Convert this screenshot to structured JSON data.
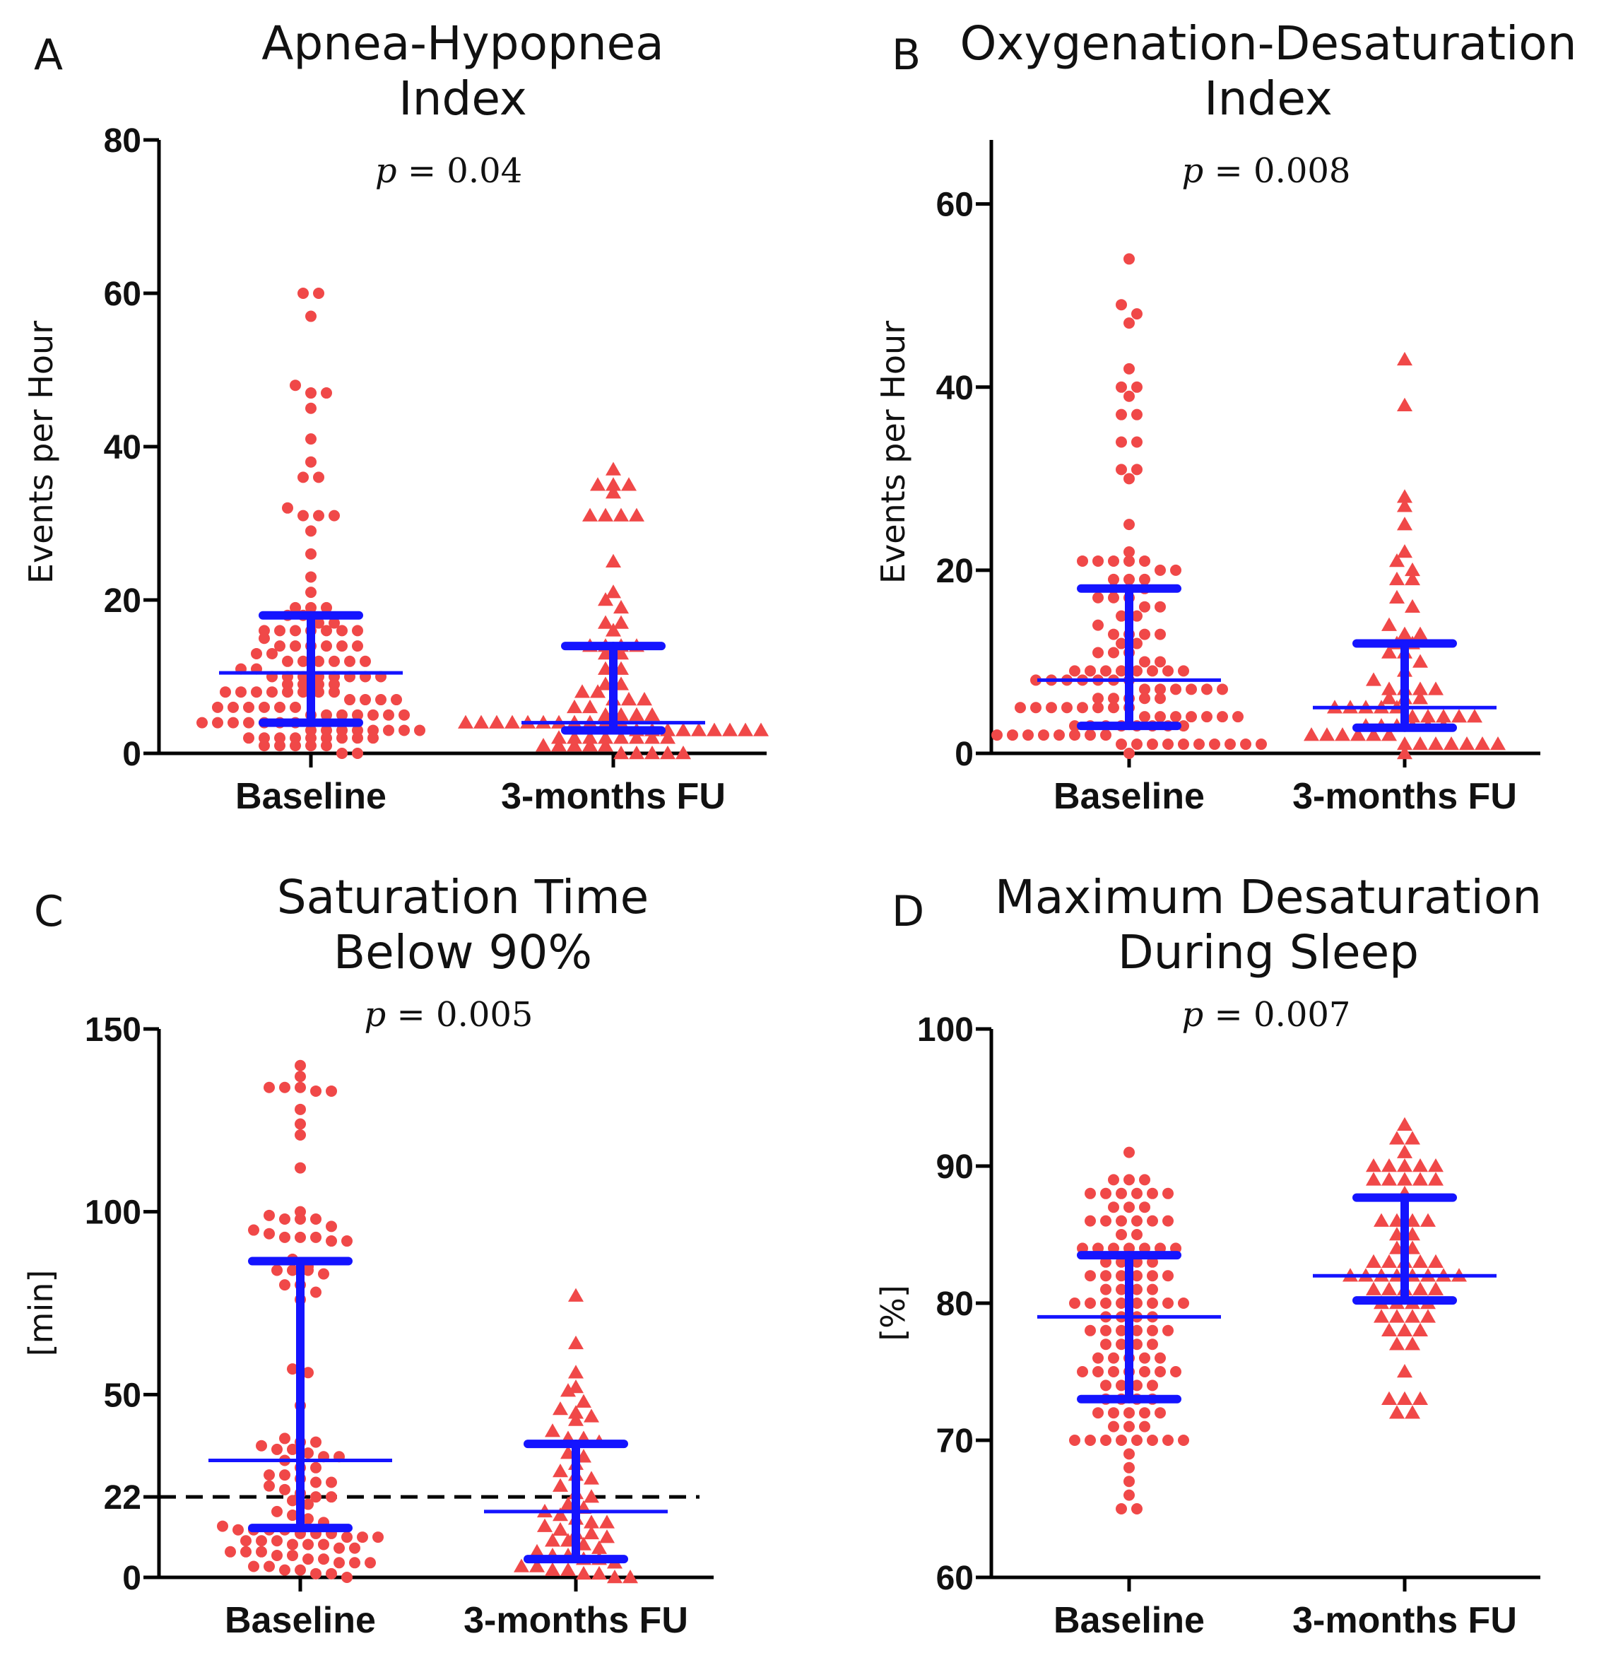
{
  "chart_data": [
    {
      "type": "scatter",
      "letter": "A",
      "title": [
        "Apnea-Hypopnea",
        "Index"
      ],
      "p_label": "p",
      "p_value": "= 0.04",
      "ylabel": "Events per Hour",
      "ylim": [
        0,
        80
      ],
      "yticks": [
        0,
        20,
        40,
        60,
        80
      ],
      "categories": [
        "Baseline",
        "3-months FU"
      ],
      "series": [
        {
          "name": "Baseline",
          "marker": "circle",
          "values": [
            60,
            60,
            57,
            48,
            47,
            47,
            45,
            41,
            38,
            36,
            36,
            32,
            31,
            31,
            31,
            29,
            26,
            23,
            21,
            19,
            19,
            19,
            18,
            18,
            17,
            17,
            16,
            16,
            16,
            16,
            16,
            16,
            16,
            15,
            14,
            14,
            14,
            14,
            14,
            14,
            13,
            13,
            12,
            12,
            12,
            12,
            12,
            12,
            11,
            11,
            10,
            10,
            10,
            10,
            10,
            10,
            10,
            10,
            9,
            9,
            9,
            9,
            8,
            8,
            8,
            8,
            8,
            8,
            8,
            8,
            7,
            7,
            7,
            7,
            6,
            6,
            6,
            6,
            6,
            6,
            5,
            5,
            5,
            5,
            5,
            5,
            5,
            4,
            4,
            4,
            4,
            4,
            4,
            4,
            3,
            3,
            3,
            3,
            3,
            3,
            3,
            3,
            2,
            2,
            2,
            2,
            2,
            2,
            2,
            2,
            2,
            1,
            1,
            1,
            1,
            1,
            0,
            0
          ]
        },
        {
          "name": "3-months FU",
          "marker": "triangle",
          "values": [
            37,
            35,
            35,
            35,
            34,
            31,
            31,
            31,
            31,
            25,
            21,
            20,
            19,
            17,
            17,
            16,
            14,
            14,
            14,
            14,
            13,
            13,
            11,
            11,
            9,
            9,
            8,
            8,
            7,
            7,
            7,
            6,
            6,
            5,
            5,
            5,
            5,
            4,
            4,
            4,
            4,
            4,
            4,
            4,
            4,
            4,
            4,
            4,
            3,
            3,
            3,
            3,
            3,
            3,
            3,
            3,
            3,
            2,
            2,
            2,
            2,
            2,
            2,
            2,
            2,
            1,
            1,
            1,
            1,
            1,
            0,
            0,
            0,
            0,
            0
          ]
        }
      ],
      "summary": [
        {
          "median": 10.5,
          "q1": 4,
          "q3": 18
        },
        {
          "median": 4,
          "q1": 3,
          "q3": 14
        }
      ]
    },
    {
      "type": "scatter",
      "letter": "B",
      "title": [
        "Oxygenation-Desaturation",
        "Index"
      ],
      "p_label": "p",
      "p_value": "= 0.008",
      "ylabel": "Events per Hour",
      "ylim": [
        0,
        67
      ],
      "yticks": [
        0,
        20,
        40,
        60
      ],
      "categories": [
        "Baseline",
        "3-months FU"
      ],
      "series": [
        {
          "name": "Baseline",
          "marker": "circle",
          "values": [
            54,
            49,
            48,
            47,
            42,
            40,
            40,
            39,
            37,
            37,
            34,
            34,
            31,
            31,
            30,
            25,
            22,
            21,
            21,
            21,
            21,
            21,
            20,
            20,
            19,
            19,
            19,
            18,
            18,
            18,
            17,
            17,
            17,
            16,
            16,
            15,
            15,
            14,
            13,
            13,
            13,
            13,
            12,
            12,
            11,
            11,
            11,
            10,
            10,
            9,
            9,
            9,
            9,
            9,
            9,
            9,
            9,
            8,
            8,
            8,
            8,
            8,
            8,
            8,
            7,
            7,
            7,
            7,
            7,
            7,
            6,
            6,
            6,
            6,
            6,
            5,
            5,
            5,
            5,
            5,
            5,
            5,
            5,
            4,
            4,
            4,
            4,
            4,
            4,
            4,
            3,
            3,
            3,
            3,
            3,
            3,
            3,
            3,
            2,
            2,
            2,
            2,
            2,
            2,
            2,
            2,
            1,
            1,
            1,
            1,
            1,
            1,
            1,
            1,
            1,
            1,
            0
          ]
        },
        {
          "name": "3-months FU",
          "marker": "triangle",
          "values": [
            43,
            38,
            28,
            27,
            25,
            22,
            21,
            20,
            19,
            19,
            17,
            16,
            14,
            13,
            13,
            12,
            12,
            11,
            11,
            10,
            9,
            8,
            7,
            7,
            7,
            7,
            6,
            6,
            6,
            5,
            5,
            5,
            5,
            5,
            4,
            4,
            4,
            4,
            4,
            3,
            3,
            3,
            3,
            3,
            3,
            2,
            2,
            2,
            2,
            2,
            2,
            1,
            1,
            1,
            1,
            1,
            1,
            1,
            0
          ]
        }
      ],
      "summary": [
        {
          "median": 8,
          "q1": 3,
          "q3": 18
        },
        {
          "median": 5,
          "q1": 2.8,
          "q3": 12
        }
      ]
    },
    {
      "type": "scatter",
      "letter": "C",
      "title": [
        "Saturation Time",
        "Below 90%"
      ],
      "p_label": "p",
      "p_value": "= 0.005",
      "ylabel": "[min]",
      "ylim": [
        0,
        150
      ],
      "yticks": [
        0,
        22,
        50,
        100,
        150
      ],
      "reference_line": 22,
      "categories": [
        "Baseline",
        "3-months FU"
      ],
      "series": [
        {
          "name": "Baseline",
          "marker": "circle",
          "values": [
            140,
            137,
            134,
            134,
            134,
            133,
            133,
            128,
            124,
            121,
            112,
            100,
            99,
            98,
            98,
            98,
            96,
            95,
            94,
            93,
            93,
            93,
            92,
            92,
            87,
            85,
            84,
            84,
            84,
            83,
            80,
            80,
            78,
            76,
            57,
            56,
            47,
            38,
            37,
            37,
            36,
            35,
            35,
            34,
            33,
            33,
            32,
            30,
            30,
            28,
            28,
            27,
            26,
            26,
            25,
            24,
            23,
            22,
            22,
            21,
            20,
            18,
            17,
            16,
            15,
            14,
            13,
            13,
            13,
            13,
            12,
            12,
            12,
            11,
            11,
            11,
            10,
            10,
            10,
            9,
            9,
            9,
            8,
            8,
            7,
            7,
            7,
            6,
            6,
            5,
            5,
            4,
            4,
            4,
            3,
            3,
            2,
            2,
            1,
            1,
            0
          ]
        },
        {
          "name": "3-months FU",
          "marker": "triangle",
          "values": [
            77,
            64,
            56,
            52,
            51,
            48,
            46,
            45,
            44,
            43,
            40,
            38,
            38,
            37,
            34,
            33,
            31,
            29,
            28,
            27,
            25,
            23,
            22,
            20,
            19,
            18,
            17,
            16,
            15,
            15,
            14,
            13,
            12,
            12,
            11,
            10,
            10,
            9,
            8,
            7,
            6,
            6,
            5,
            5,
            4,
            3,
            3,
            2,
            2,
            1,
            1,
            0,
            0
          ]
        }
      ],
      "summary": [
        {
          "median": 32,
          "q1": 13.5,
          "q3": 86.5
        },
        {
          "median": 18,
          "q1": 5,
          "q3": 36.5
        }
      ]
    },
    {
      "type": "scatter",
      "letter": "D",
      "title": [
        "Maximum Desaturation",
        "During Sleep"
      ],
      "p_label": "p",
      "p_value": "= 0.007",
      "ylabel": "[%]",
      "ylim": [
        60,
        100
      ],
      "yticks": [
        60,
        70,
        80,
        90,
        100
      ],
      "categories": [
        "Baseline",
        "3-months FU"
      ],
      "series": [
        {
          "name": "Baseline",
          "marker": "circle",
          "values": [
            91,
            89,
            89,
            89,
            88,
            88,
            88,
            88,
            88,
            88,
            87,
            87,
            87,
            86,
            86,
            86,
            86,
            86,
            86,
            85,
            85,
            84,
            84,
            84,
            84,
            84,
            84,
            84,
            83,
            83,
            83,
            83,
            82,
            82,
            82,
            82,
            82,
            82,
            81,
            81,
            81,
            81,
            80,
            80,
            80,
            80,
            80,
            80,
            80,
            80,
            79,
            79,
            79,
            79,
            78,
            78,
            78,
            78,
            78,
            78,
            77,
            77,
            77,
            77,
            76,
            76,
            76,
            76,
            76,
            75,
            75,
            75,
            75,
            75,
            75,
            75,
            74,
            74,
            74,
            74,
            73,
            73,
            73,
            73,
            72,
            72,
            72,
            72,
            72,
            71,
            71,
            71,
            70,
            70,
            70,
            70,
            70,
            70,
            70,
            70,
            69,
            68,
            67,
            66,
            65,
            65
          ]
        },
        {
          "name": "3-months FU",
          "marker": "triangle",
          "values": [
            93,
            92,
            92,
            91,
            90,
            90,
            90,
            90,
            90,
            89,
            89,
            89,
            89,
            89,
            88,
            86,
            86,
            86,
            86,
            85,
            85,
            84,
            84,
            83,
            83,
            83,
            83,
            83,
            82,
            82,
            82,
            82,
            82,
            82,
            82,
            82,
            81,
            81,
            81,
            81,
            81,
            80,
            80,
            80,
            80,
            79,
            79,
            79,
            79,
            78,
            78,
            78,
            77,
            77,
            75,
            73,
            73,
            73,
            72,
            72
          ]
        }
      ],
      "summary": [
        {
          "median": 79,
          "q1": 73,
          "q3": 83.5
        },
        {
          "median": 82,
          "q1": 80.2,
          "q3": 87.7
        }
      ]
    }
  ]
}
